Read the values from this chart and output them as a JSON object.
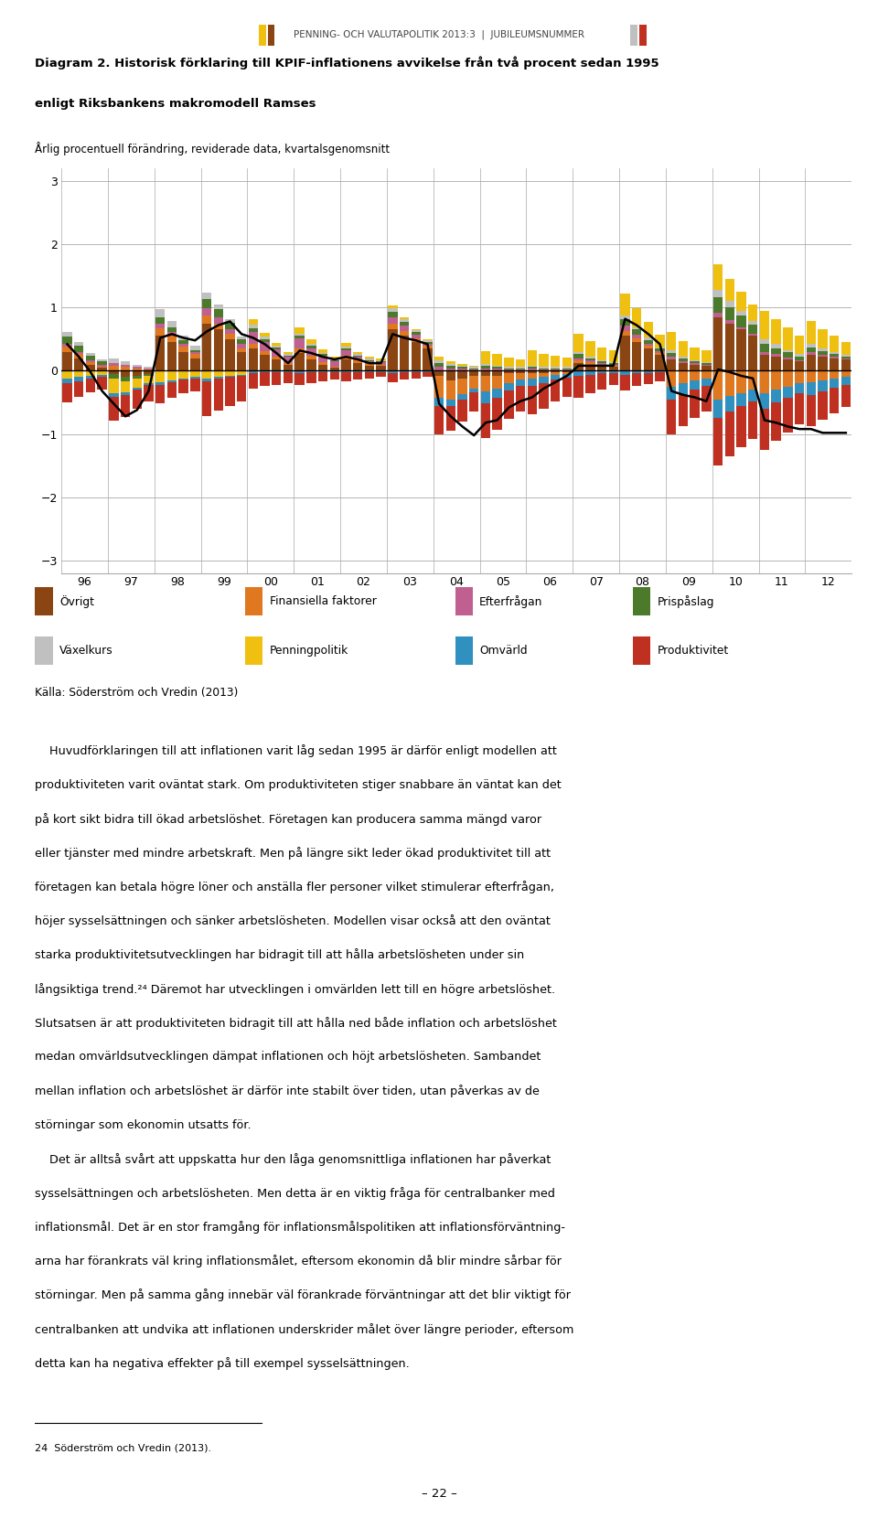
{
  "title_line1": "Diagram 2. Historisk förklaring till KPIF-inflationens avvikelse från två procent sedan 1995",
  "title_line2": "enligt Riksbankens makromodell Ramses",
  "subtitle": "Årlig procentuell förändring, reviderade data, kvartalsgenomsnitt",
  "source": "Källa: Söderström och Vredin (2013)",
  "header": "PENNING- OCH VALUTAPOLITIK 2013:3  |  JUBILEUMSNUMMER",
  "ylim": [
    -3.2,
    3.2
  ],
  "yticks": [
    -3,
    -2,
    -1,
    0,
    1,
    2,
    3
  ],
  "categories": [
    "96",
    "97",
    "98",
    "99",
    "00",
    "01",
    "02",
    "03",
    "04",
    "05",
    "06",
    "07",
    "08",
    "09",
    "10",
    "11",
    "12"
  ],
  "colors": {
    "Övrigt": "#8B4513",
    "Finansiella faktorer": "#E07820",
    "Efterfrågan": "#C06090",
    "Prispåslag": "#4A7A2A",
    "Växelkurs": "#C0C0C0",
    "Penningpolitik": "#F0C010",
    "Omvärld": "#3090C0",
    "Produktivitet": "#C03020"
  },
  "series_names": [
    "Övrigt",
    "Finansiella faktorer",
    "Efterfrågan",
    "Prispåslag",
    "Växelkurs",
    "Penningpolitik",
    "Omvärld",
    "Produktivitet"
  ],
  "data": {
    "Övrigt": [
      0.3,
      0.2,
      0.1,
      0.05,
      -0.05,
      -0.1,
      -0.08,
      -0.05,
      0.55,
      0.45,
      0.3,
      0.2,
      0.75,
      0.65,
      0.5,
      0.3,
      0.35,
      0.25,
      0.18,
      0.1,
      0.28,
      0.18,
      0.1,
      0.05,
      0.18,
      0.12,
      0.08,
      0.08,
      0.65,
      0.55,
      0.45,
      0.35,
      -0.08,
      -0.15,
      -0.12,
      -0.08,
      -0.08,
      -0.08,
      -0.04,
      -0.04,
      -0.04,
      -0.04,
      -0.02,
      -0.02,
      0.12,
      0.1,
      0.08,
      0.06,
      0.55,
      0.45,
      0.35,
      0.25,
      0.18,
      0.12,
      0.1,
      0.08,
      0.85,
      0.75,
      0.65,
      0.55,
      0.25,
      0.22,
      0.18,
      0.15,
      0.25,
      0.22,
      0.2,
      0.18
    ],
    "Finansiella faktorer": [
      0.08,
      0.06,
      0.04,
      0.02,
      0.08,
      0.06,
      0.04,
      0.02,
      0.12,
      0.1,
      0.08,
      0.06,
      0.12,
      0.1,
      0.08,
      0.06,
      0.08,
      0.06,
      0.04,
      0.02,
      0.08,
      0.06,
      0.04,
      0.02,
      0.06,
      0.04,
      0.03,
      0.02,
      0.1,
      0.08,
      0.06,
      0.04,
      -0.35,
      -0.3,
      -0.25,
      -0.2,
      -0.25,
      -0.2,
      -0.15,
      -0.1,
      -0.08,
      -0.06,
      -0.04,
      -0.03,
      0.04,
      0.03,
      0.02,
      0.02,
      0.08,
      0.06,
      0.04,
      0.03,
      -0.25,
      -0.2,
      -0.15,
      -0.12,
      -0.45,
      -0.4,
      -0.35,
      -0.3,
      -0.35,
      -0.3,
      -0.25,
      -0.2,
      -0.18,
      -0.15,
      -0.12,
      -0.1
    ],
    "Efterfrågan": [
      0.04,
      0.03,
      0.02,
      0.02,
      0.04,
      0.03,
      0.02,
      0.02,
      0.08,
      0.06,
      0.04,
      0.03,
      0.12,
      0.1,
      0.08,
      0.06,
      0.18,
      0.15,
      0.12,
      0.1,
      0.15,
      0.12,
      0.1,
      0.08,
      0.08,
      0.06,
      0.04,
      0.03,
      0.1,
      0.08,
      0.06,
      0.04,
      0.06,
      0.04,
      0.03,
      0.02,
      0.04,
      0.03,
      0.02,
      0.02,
      0.03,
      0.02,
      0.02,
      0.02,
      0.04,
      0.03,
      0.02,
      0.02,
      0.08,
      0.06,
      0.04,
      0.03,
      0.04,
      0.03,
      0.02,
      0.02,
      0.06,
      0.05,
      0.04,
      0.03,
      0.05,
      0.04,
      0.03,
      0.02,
      0.04,
      0.03,
      0.03,
      0.02
    ],
    "Prispåslag": [
      0.12,
      0.1,
      0.08,
      0.06,
      -0.08,
      -0.06,
      -0.04,
      -0.03,
      0.1,
      0.08,
      0.06,
      0.04,
      0.15,
      0.12,
      0.1,
      0.08,
      0.06,
      0.04,
      0.03,
      0.02,
      0.04,
      0.03,
      0.02,
      0.02,
      0.03,
      0.02,
      0.02,
      0.02,
      0.08,
      0.06,
      0.04,
      0.03,
      0.06,
      0.04,
      0.03,
      0.02,
      0.04,
      0.03,
      0.02,
      0.02,
      0.03,
      0.02,
      0.02,
      0.02,
      0.06,
      0.04,
      0.03,
      0.02,
      0.1,
      0.08,
      0.06,
      0.04,
      0.06,
      0.04,
      0.03,
      0.02,
      0.25,
      0.2,
      0.18,
      0.15,
      0.12,
      0.1,
      0.08,
      0.06,
      0.08,
      0.06,
      0.04,
      0.03
    ],
    "Växelkurs": [
      0.08,
      0.06,
      0.04,
      0.03,
      0.08,
      0.06,
      0.04,
      0.03,
      0.12,
      0.1,
      0.08,
      0.06,
      0.1,
      0.08,
      0.06,
      0.04,
      0.06,
      0.04,
      0.03,
      0.02,
      0.04,
      0.03,
      0.02,
      0.02,
      0.03,
      0.02,
      0.02,
      0.02,
      0.06,
      0.04,
      0.03,
      0.02,
      0.04,
      0.03,
      0.02,
      0.02,
      0.03,
      0.02,
      0.02,
      0.02,
      0.02,
      0.02,
      0.02,
      0.02,
      0.03,
      0.02,
      0.02,
      0.02,
      0.06,
      0.04,
      0.03,
      0.02,
      0.04,
      0.03,
      0.02,
      0.02,
      0.12,
      0.1,
      0.08,
      0.06,
      0.08,
      0.06,
      0.04,
      0.03,
      0.06,
      0.04,
      0.03,
      0.02
    ],
    "Penningpolitik": [
      -0.12,
      -0.1,
      -0.08,
      -0.06,
      -0.22,
      -0.18,
      -0.15,
      -0.12,
      -0.18,
      -0.15,
      -0.12,
      -0.1,
      -0.12,
      -0.1,
      -0.08,
      -0.06,
      0.08,
      0.06,
      0.04,
      0.03,
      0.1,
      0.08,
      0.06,
      0.04,
      0.06,
      0.04,
      0.03,
      0.02,
      0.04,
      0.03,
      0.02,
      0.02,
      0.06,
      0.04,
      0.03,
      0.02,
      0.2,
      0.18,
      0.15,
      0.12,
      0.25,
      0.2,
      0.18,
      0.15,
      0.3,
      0.25,
      0.2,
      0.18,
      0.35,
      0.3,
      0.25,
      0.2,
      0.3,
      0.25,
      0.2,
      0.18,
      0.4,
      0.35,
      0.3,
      0.25,
      0.45,
      0.4,
      0.35,
      0.3,
      0.35,
      0.3,
      0.25,
      0.2
    ],
    "Omvärld": [
      -0.08,
      -0.06,
      -0.04,
      -0.03,
      -0.06,
      -0.04,
      -0.03,
      -0.02,
      -0.04,
      -0.03,
      -0.02,
      -0.02,
      -0.04,
      -0.03,
      -0.02,
      -0.02,
      -0.03,
      -0.02,
      -0.02,
      -0.02,
      -0.03,
      -0.02,
      -0.02,
      -0.02,
      -0.02,
      -0.02,
      -0.02,
      -0.02,
      -0.03,
      -0.02,
      -0.02,
      -0.02,
      -0.12,
      -0.1,
      -0.08,
      -0.06,
      -0.18,
      -0.15,
      -0.12,
      -0.1,
      -0.12,
      -0.1,
      -0.08,
      -0.06,
      -0.08,
      -0.06,
      -0.04,
      -0.03,
      -0.06,
      -0.04,
      -0.03,
      -0.02,
      -0.2,
      -0.18,
      -0.15,
      -0.12,
      -0.3,
      -0.25,
      -0.2,
      -0.18,
      -0.25,
      -0.2,
      -0.18,
      -0.15,
      -0.2,
      -0.18,
      -0.15,
      -0.12
    ],
    "Produktivitet": [
      -0.3,
      -0.25,
      -0.22,
      -0.2,
      -0.38,
      -0.35,
      -0.3,
      -0.26,
      -0.3,
      -0.25,
      -0.22,
      -0.2,
      -0.55,
      -0.5,
      -0.45,
      -0.4,
      -0.25,
      -0.22,
      -0.2,
      -0.18,
      -0.2,
      -0.18,
      -0.15,
      -0.12,
      -0.15,
      -0.12,
      -0.1,
      -0.08,
      -0.15,
      -0.12,
      -0.1,
      -0.08,
      -0.45,
      -0.4,
      -0.35,
      -0.3,
      -0.55,
      -0.5,
      -0.45,
      -0.4,
      -0.45,
      -0.4,
      -0.35,
      -0.3,
      -0.35,
      -0.3,
      -0.25,
      -0.2,
      -0.25,
      -0.2,
      -0.18,
      -0.15,
      -0.55,
      -0.5,
      -0.45,
      -0.4,
      -0.75,
      -0.7,
      -0.65,
      -0.6,
      -0.65,
      -0.6,
      -0.55,
      -0.5,
      -0.5,
      -0.45,
      -0.4,
      -0.35
    ]
  },
  "line_data": [
    0.42,
    0.22,
    -0.02,
    -0.32,
    -0.52,
    -0.72,
    -0.62,
    -0.32,
    0.52,
    0.58,
    0.52,
    0.48,
    0.62,
    0.72,
    0.78,
    0.58,
    0.52,
    0.42,
    0.28,
    0.12,
    0.32,
    0.28,
    0.22,
    0.18,
    0.22,
    0.18,
    0.12,
    0.12,
    0.58,
    0.52,
    0.48,
    0.42,
    -0.52,
    -0.72,
    -0.88,
    -1.02,
    -0.82,
    -0.78,
    -0.58,
    -0.48,
    -0.42,
    -0.28,
    -0.18,
    -0.08,
    0.08,
    0.08,
    0.08,
    0.08,
    0.82,
    0.72,
    0.58,
    0.42,
    -0.32,
    -0.38,
    -0.42,
    -0.48,
    0.02,
    -0.02,
    -0.08,
    -0.12,
    -0.78,
    -0.82,
    -0.88,
    -0.92,
    -0.92,
    -0.98,
    -0.98,
    -0.98
  ],
  "body_text_1": "    Huvudförklaringen till att inflationen varit låg sedan 1995 är därför enligt modellen att produktiviteten varit oväntat stark. Om produktiviteten stiger snabbare än väntat kan det på kort sikt bidra till ökad arbetslöshet. Företagen kan producera samma mängd varor eller tjänster med mindre arbetskraft. Men på längre sikt leder ökad produktivitet till att företagen kan betala högre löner och anställa fler personer vilket stimulerar efterfrågan, höjer sysselsättningen och sänker arbetslösheten. Modellen visar också att den oväntat starka produktivitetsutvecklingen har bidragit till att hålla arbetslösheten under sin långsiktiga trend.",
  "body_text_2": " Däremot har utvecklingen i omvärlden lett till en högre arbetslöshet. Slutsatsen är att produktiviteten bidragit till att hålla ned både inflation och arbetslöshet medan omvärldsutve-cklingen dämpat inflationen och höjt arbetslösheten. Sambandet mellan inflation och arbetslöshet är därför inte stabilt över tiden, utan påverkas av de störningar som ekonomin utsatts för.",
  "body_text_3": "    Det är alltså svårt att uppskatta hur den låga genomsnittliga inflationen har påverkat sysselsättningen och arbetslösheten. Men detta är en viktig fråga för centralbanker med inflationsmål. Det är en stor framgång för inflationsmålspolitiken att inflationsförväntningarna har förankrats väl kring inflationsmålet, eftersom ekonomin då blir mindre sårbar för störningar. Men på samma gång innebär väl förankrade förväntningar att det blir viktigt för centralbanken att undvika att inflationen underskrider målet över längre perioder, eftersom detta kan ha negativa effekter på till exempel sysselsättningen.",
  "footnote": "24  Söderström och Vredin (2013).",
  "page_number": "– 22 –"
}
